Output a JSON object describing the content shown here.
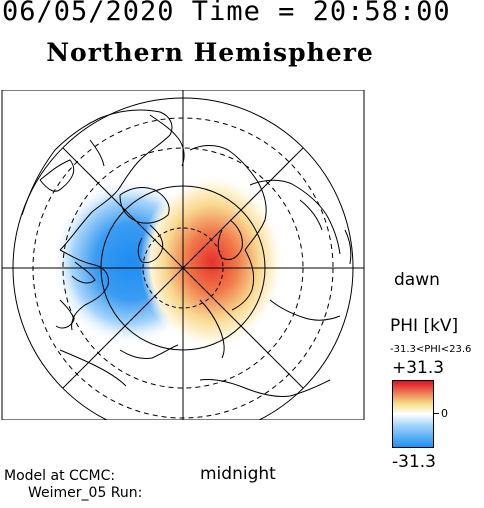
{
  "header": {
    "datetime": "06/05/2020 Time = 20:58:00",
    "hemisphere": "Northern Hemisphere"
  },
  "map": {
    "labels": {
      "dawn": "dawn",
      "midnight": "midnight"
    },
    "potential_cells": [
      {
        "name": "negative-cell",
        "color": "#2e8ff0",
        "sign": "negative"
      },
      {
        "name": "positive-cell",
        "color": "#e8302a",
        "sign": "positive"
      }
    ]
  },
  "colorbar": {
    "title": "PHI [kV]",
    "range_label": "-31.3<PHI<23.6",
    "max_label": "+31.3",
    "mid_label": "0",
    "min_label": "-31.3",
    "min": -31.3,
    "max": 31.3,
    "colors": {
      "low": "#1f8ff2",
      "mid": "#ffffff",
      "high": "#e01020",
      "midlow": "#9fd3fb",
      "midhigh": "#f7e08a"
    }
  },
  "credits": {
    "line1": "Model at CCMC:",
    "line2": "Weimer_05 Run:"
  }
}
